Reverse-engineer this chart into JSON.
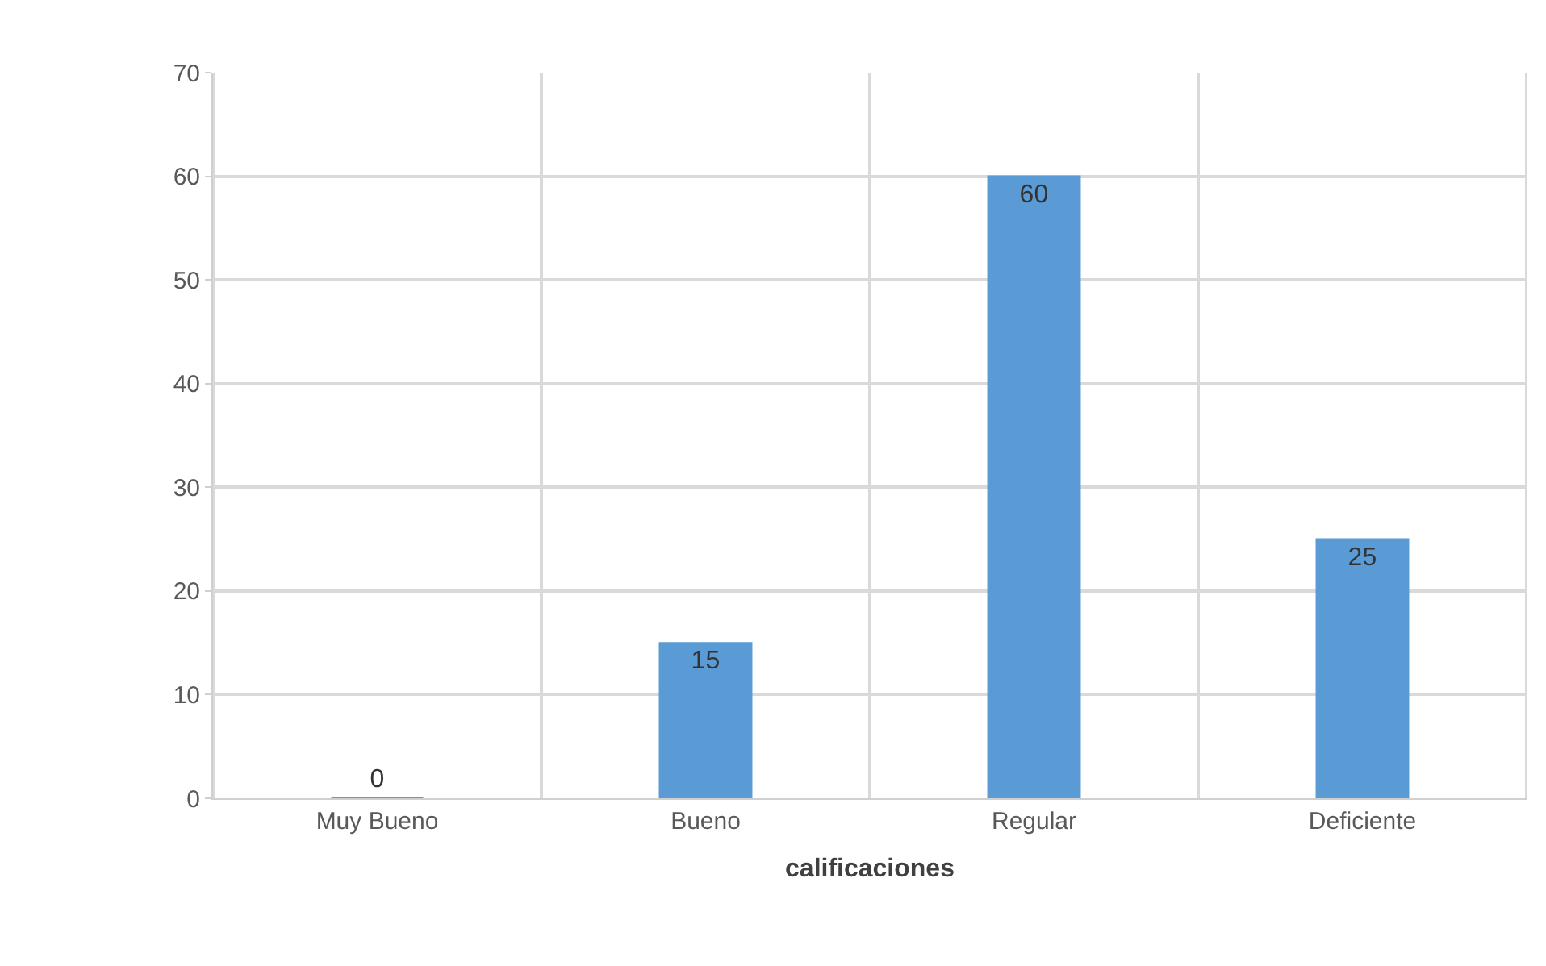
{
  "chart_data": {
    "type": "bar",
    "xlabel": "calificaciones",
    "categories": [
      "Muy Bueno",
      "Bueno",
      "Regular",
      "Deficiente"
    ],
    "values": [
      0,
      15,
      60,
      25
    ],
    "color": "#5b9bd5",
    "ylim": [
      0,
      70
    ],
    "yticks": [
      0,
      10,
      20,
      30,
      40,
      50,
      60,
      70
    ],
    "grid": true,
    "data_labels": true
  }
}
